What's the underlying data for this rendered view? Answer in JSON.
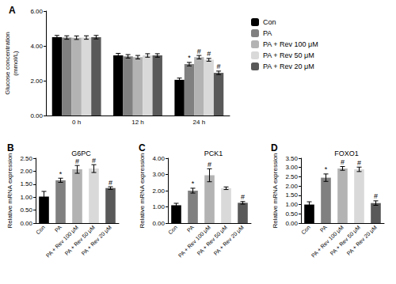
{
  "chart_data": [
    {
      "type": "bar",
      "panel_label": "A",
      "y_label": "Glucose concentration\n(mmol/L)",
      "categories": [
        "0 h",
        "12 h",
        "24 h"
      ],
      "series": [
        {
          "name": "Con",
          "color": "#000000",
          "values": [
            4.5,
            3.45,
            2.05
          ],
          "errors": [
            0.1,
            0.12,
            0.1
          ],
          "annotations": [
            null,
            null,
            null
          ]
        },
        {
          "name": "PA",
          "color": "#808080",
          "values": [
            4.48,
            3.4,
            2.95
          ],
          "errors": [
            0.1,
            0.1,
            0.1
          ],
          "annotations": [
            null,
            null,
            "*"
          ]
        },
        {
          "name": "PA + Rev 100 μM",
          "color": "#b3b3b3",
          "values": [
            4.47,
            3.35,
            3.35
          ],
          "errors": [
            0.1,
            0.1,
            0.1
          ],
          "annotations": [
            null,
            null,
            "#"
          ]
        },
        {
          "name": "PA + Rev 50 μM",
          "color": "#d9d9d9",
          "values": [
            4.48,
            3.45,
            3.2
          ],
          "errors": [
            0.1,
            0.1,
            0.08
          ],
          "annotations": [
            null,
            null,
            "#"
          ]
        },
        {
          "name": "PA + Rev 20 μM",
          "color": "#595959",
          "values": [
            4.5,
            3.45,
            2.45
          ],
          "errors": [
            0.1,
            0.1,
            0.1
          ],
          "annotations": [
            null,
            null,
            "#"
          ]
        }
      ],
      "ylim": [
        0,
        6
      ],
      "yticks": [
        {
          "value": 0,
          "label": "0.00"
        },
        {
          "value": 2,
          "label": "2.00"
        },
        {
          "value": 4,
          "label": "4.00"
        },
        {
          "value": 6,
          "label": "6.00"
        }
      ],
      "grid": false,
      "legend": "right"
    },
    {
      "type": "bar",
      "panel_label": "B",
      "title": "G6PC",
      "y_label": "Relative mRNA expression",
      "categories": [
        "Con",
        "PA",
        "PA + Rev 100 μM",
        "PA + Rev 50 μM",
        "PA + Rev 20 μM"
      ],
      "values": [
        1.02,
        1.65,
        2.07,
        2.1,
        1.35
      ],
      "errors": [
        0.2,
        0.08,
        0.15,
        0.15,
        0.05
      ],
      "annotations": [
        null,
        "*",
        "#",
        "#",
        "#"
      ],
      "colors": [
        "#000000",
        "#808080",
        "#b3b3b3",
        "#d9d9d9",
        "#595959"
      ],
      "ylim": [
        0,
        2.5
      ],
      "yticks": [
        {
          "value": 0,
          "label": "0.00"
        },
        {
          "value": 0.5,
          "label": "0.50"
        },
        {
          "value": 1,
          "label": "1.00"
        },
        {
          "value": 1.5,
          "label": "1.50"
        },
        {
          "value": 2,
          "label": "2.00"
        },
        {
          "value": 2.5,
          "label": "2.50"
        }
      ],
      "grid": false
    },
    {
      "type": "bar",
      "panel_label": "C",
      "title": "PCK1",
      "y_label": "Relative mRNA expression",
      "categories": [
        "Con",
        "PA",
        "PA + Rev 100 μM",
        "PA + Rev 50 μM",
        "PA + Rev 20 μM"
      ],
      "values": [
        1.1,
        2.0,
        2.95,
        2.15,
        1.25
      ],
      "errors": [
        0.12,
        0.15,
        0.4,
        0.08,
        0.08
      ],
      "annotations": [
        null,
        "*",
        "#",
        null,
        "#"
      ],
      "colors": [
        "#000000",
        "#808080",
        "#b3b3b3",
        "#d9d9d9",
        "#595959"
      ],
      "ylim": [
        0,
        4
      ],
      "yticks": [
        {
          "value": 0,
          "label": "0.00"
        },
        {
          "value": 1,
          "label": "1.00"
        },
        {
          "value": 2,
          "label": "2.00"
        },
        {
          "value": 3,
          "label": "3.00"
        },
        {
          "value": 4,
          "label": "4.00"
        }
      ],
      "grid": false
    },
    {
      "type": "bar",
      "panel_label": "D",
      "title": "FOXO1",
      "y_label": "Relative mRNA expression",
      "categories": [
        "Con",
        "PA",
        "PA + Rev 100 μM",
        "PA + Rev 50 μM",
        "PA + Rev 20 μM"
      ],
      "values": [
        1.0,
        2.45,
        2.95,
        2.9,
        1.08
      ],
      "errors": [
        0.15,
        0.2,
        0.1,
        0.12,
        0.12
      ],
      "annotations": [
        null,
        "*",
        "#",
        "#",
        "#"
      ],
      "colors": [
        "#000000",
        "#808080",
        "#b3b3b3",
        "#d9d9d9",
        "#595959"
      ],
      "ylim": [
        0,
        3.5
      ],
      "yticks": [
        {
          "value": 0,
          "label": "0.00"
        },
        {
          "value": 0.5,
          "label": "0.50"
        },
        {
          "value": 1,
          "label": "1.00"
        },
        {
          "value": 1.5,
          "label": "1.50"
        },
        {
          "value": 2,
          "label": "2.00"
        },
        {
          "value": 2.5,
          "label": "2.50"
        },
        {
          "value": 3,
          "label": "3.00"
        },
        {
          "value": 3.5,
          "label": "3.50"
        }
      ],
      "grid": false
    }
  ]
}
